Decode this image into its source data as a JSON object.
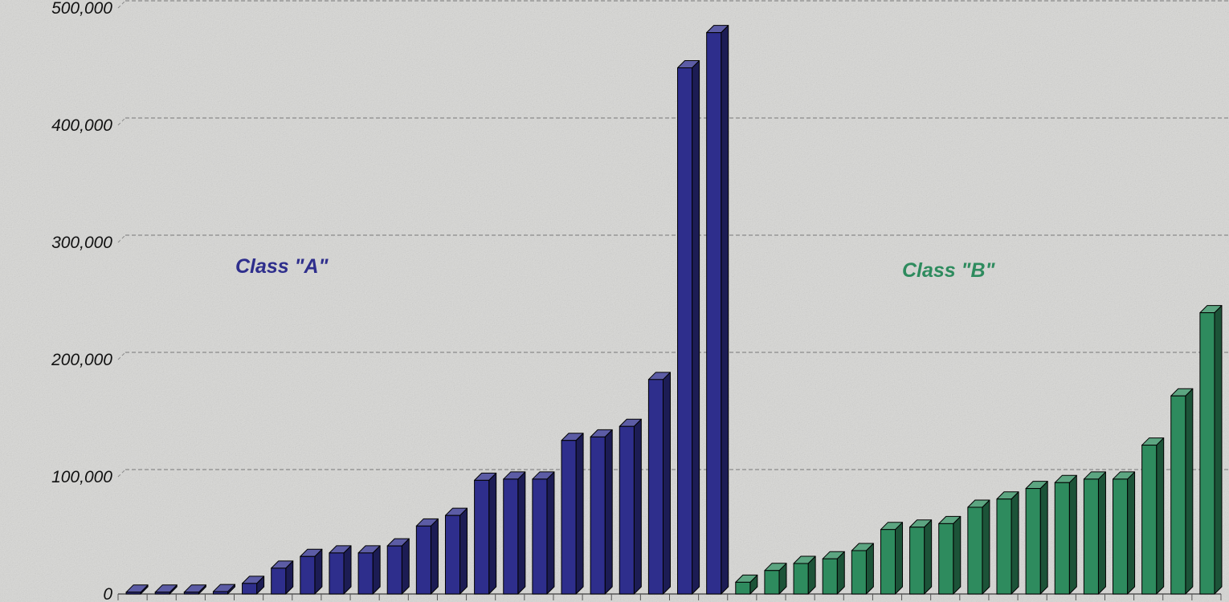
{
  "chart_data": {
    "type": "bar",
    "ylim": [
      0,
      500000
    ],
    "y_ticks": [
      0,
      100000,
      200000,
      300000,
      400000,
      500000
    ],
    "y_tick_labels": [
      "0",
      "100,000",
      "200,000",
      "300,000",
      "400,000",
      "500,000"
    ],
    "grid": "horizontal dashed",
    "annotations": [
      {
        "text": "Class \"A\"",
        "series": "A"
      },
      {
        "text": "Class \"B\"",
        "series": "B"
      }
    ],
    "series": [
      {
        "name": "Class \"A\"",
        "color": "#2e2e8c",
        "values": [
          1500,
          1500,
          1500,
          2000,
          9000,
          22000,
          32000,
          35000,
          35000,
          41000,
          58000,
          67000,
          97000,
          98000,
          98000,
          131000,
          134000,
          143000,
          183000,
          449000,
          479000
        ]
      },
      {
        "name": "Class \"B\"",
        "color": "#2e8b5e",
        "values": [
          10000,
          20000,
          26000,
          30000,
          37000,
          55000,
          57000,
          60000,
          74000,
          81000,
          90000,
          95000,
          98000,
          98000,
          127000,
          169000,
          240000
        ]
      }
    ]
  }
}
